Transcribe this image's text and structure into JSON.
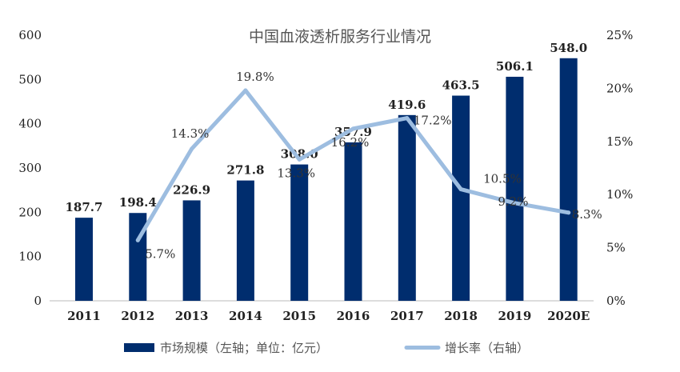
{
  "chart_data": {
    "type": "bar",
    "title": "中国血液透析服务行业情况",
    "categories": [
      "2011",
      "2012",
      "2013",
      "2014",
      "2015",
      "2016",
      "2017",
      "2018",
      "2019",
      "2020E"
    ],
    "series": [
      {
        "name": "市场规模（左轴；单位：亿元）",
        "type": "bar",
        "axis": "left",
        "values": [
          187.7,
          198.4,
          226.9,
          271.8,
          308.0,
          357.9,
          419.6,
          463.5,
          506.1,
          548.0
        ],
        "labels": [
          "187.7",
          "198.4",
          "226.9",
          "271.8",
          "308.0",
          "357.9",
          "419.6",
          "463.5",
          "506.1",
          "548.0"
        ],
        "color": "#002d6e"
      },
      {
        "name": "增长率（右轴）",
        "type": "line",
        "axis": "right",
        "values": [
          null,
          5.7,
          14.3,
          19.8,
          13.3,
          16.2,
          17.2,
          10.5,
          9.2,
          8.3
        ],
        "labels": [
          null,
          "5.7%",
          "14.3%",
          "19.8%",
          "13.3%",
          "16.2%",
          "17.2%",
          "10.5%",
          "9.2%",
          "8.3%"
        ],
        "color": "#9dbde0"
      }
    ],
    "y_left": {
      "ylim": [
        0,
        600
      ],
      "ticks": [
        "0",
        "100",
        "200",
        "300",
        "400",
        "500",
        "600"
      ]
    },
    "y_right": {
      "ylim": [
        0,
        25
      ],
      "ticks": [
        "0%",
        "5%",
        "10%",
        "15%",
        "20%",
        "25%"
      ]
    },
    "grid": false,
    "legend_position": "bottom"
  }
}
